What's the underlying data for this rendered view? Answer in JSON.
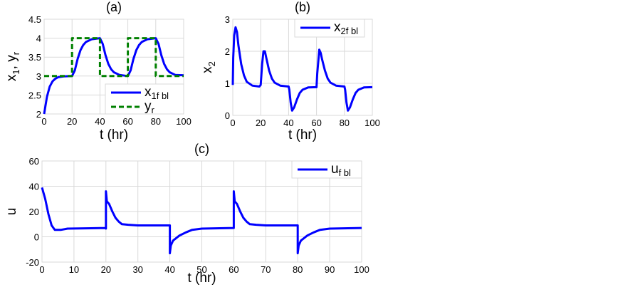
{
  "chart_data": [
    {
      "type": "line",
      "title": "(a)",
      "xlabel": "t (hr)",
      "ylabel": "x1, yr",
      "ylabel_main": "x",
      "ylabel_sub1": "1",
      "ylabel_sep": ", y",
      "ylabel_sub2": "r",
      "xlim": [
        0,
        100
      ],
      "ylim": [
        2,
        4.5
      ],
      "xticks": [
        0,
        20,
        40,
        60,
        80,
        100
      ],
      "yticks": [
        2,
        2.5,
        3,
        3.5,
        4,
        4.5
      ],
      "ytick_labels": [
        "2",
        "2.5",
        "3",
        "3.5",
        "4",
        "4.5"
      ],
      "grid": true,
      "legend_placement": "bottom-right",
      "series": [
        {
          "name": "x1f bl",
          "legend_main": "x",
          "legend_sub": "1f bl",
          "color": "#0000ff",
          "style": "solid",
          "points": [
            [
              0,
              2
            ],
            [
              2,
              2.45
            ],
            [
              4,
              2.72
            ],
            [
              6,
              2.86
            ],
            [
              8,
              2.93
            ],
            [
              10,
              2.97
            ],
            [
              14,
              2.99
            ],
            [
              20,
              3.0
            ],
            [
              22,
              3.15
            ],
            [
              24,
              3.45
            ],
            [
              26,
              3.68
            ],
            [
              28,
              3.82
            ],
            [
              30,
              3.9
            ],
            [
              34,
              3.97
            ],
            [
              40,
              4.0
            ],
            [
              42,
              3.85
            ],
            [
              44,
              3.55
            ],
            [
              46,
              3.32
            ],
            [
              48,
              3.18
            ],
            [
              50,
              3.1
            ],
            [
              54,
              3.03
            ],
            [
              60,
              3.0
            ],
            [
              62,
              3.15
            ],
            [
              64,
              3.45
            ],
            [
              66,
              3.68
            ],
            [
              68,
              3.82
            ],
            [
              70,
              3.9
            ],
            [
              74,
              3.97
            ],
            [
              80,
              4.0
            ],
            [
              82,
              3.85
            ],
            [
              84,
              3.55
            ],
            [
              86,
              3.32
            ],
            [
              88,
              3.18
            ],
            [
              90,
              3.1
            ],
            [
              94,
              3.03
            ],
            [
              100,
              3.02
            ]
          ]
        },
        {
          "name": "yr",
          "legend_main": "y",
          "legend_sub": "r",
          "color": "#008000",
          "style": "dashed",
          "points": [
            [
              0,
              3
            ],
            [
              20,
              3
            ],
            [
              20,
              4
            ],
            [
              40,
              4
            ],
            [
              40,
              3
            ],
            [
              60,
              3
            ],
            [
              60,
              4
            ],
            [
              80,
              4
            ],
            [
              80,
              3
            ],
            [
              100,
              3
            ]
          ]
        }
      ]
    },
    {
      "type": "line",
      "title": "(b)",
      "xlabel": "t (hr)",
      "ylabel": "x2",
      "ylabel_main": "x",
      "ylabel_sub1": "2",
      "xlim": [
        0,
        100
      ],
      "ylim": [
        0,
        3
      ],
      "xticks": [
        0,
        20,
        40,
        60,
        80,
        100
      ],
      "yticks": [
        0,
        1,
        2,
        3
      ],
      "ytick_labels": [
        "0",
        "1",
        "2",
        "3"
      ],
      "grid": true,
      "legend_placement": "top-right",
      "series": [
        {
          "name": "x2f bl",
          "legend_main": "x",
          "legend_sub": "2f bl",
          "color": "#0000ff",
          "style": "solid",
          "points": [
            [
              0,
              0.95
            ],
            [
              0.3,
              1.8
            ],
            [
              1,
              2.5
            ],
            [
              2,
              2.75
            ],
            [
              3,
              2.6
            ],
            [
              4,
              2.2
            ],
            [
              6,
              1.6
            ],
            [
              8,
              1.25
            ],
            [
              10,
              1.05
            ],
            [
              14,
              0.93
            ],
            [
              19,
              0.9
            ],
            [
              20,
              0.95
            ],
            [
              21,
              1.6
            ],
            [
              22,
              2.0
            ],
            [
              23,
              2.0
            ],
            [
              24,
              1.8
            ],
            [
              26,
              1.4
            ],
            [
              28,
              1.15
            ],
            [
              30,
              1.02
            ],
            [
              34,
              0.93
            ],
            [
              40,
              0.9
            ],
            [
              40.5,
              0.8
            ],
            [
              41.5,
              0.4
            ],
            [
              42.5,
              0.15
            ],
            [
              44,
              0.25
            ],
            [
              46,
              0.5
            ],
            [
              48,
              0.7
            ],
            [
              50,
              0.8
            ],
            [
              54,
              0.87
            ],
            [
              60,
              0.88
            ],
            [
              60.5,
              1.3
            ],
            [
              62,
              2.05
            ],
            [
              63,
              1.95
            ],
            [
              64,
              1.75
            ],
            [
              66,
              1.4
            ],
            [
              68,
              1.15
            ],
            [
              70,
              1.02
            ],
            [
              74,
              0.93
            ],
            [
              80,
              0.9
            ],
            [
              80.5,
              0.8
            ],
            [
              81.5,
              0.4
            ],
            [
              82.5,
              0.15
            ],
            [
              84,
              0.25
            ],
            [
              86,
              0.5
            ],
            [
              88,
              0.7
            ],
            [
              90,
              0.8
            ],
            [
              94,
              0.87
            ],
            [
              100,
              0.88
            ]
          ]
        }
      ]
    },
    {
      "type": "line",
      "title": "(c)",
      "xlabel": "t (hr)",
      "ylabel": "u",
      "ylabel_main": "u",
      "xlim": [
        0,
        100
      ],
      "ylim": [
        -20,
        60
      ],
      "xticks": [
        0,
        10,
        20,
        30,
        40,
        50,
        60,
        70,
        80,
        90,
        100
      ],
      "yticks": [
        -20,
        0,
        20,
        40,
        60
      ],
      "ytick_labels": [
        "-20",
        "0",
        "20",
        "40",
        "60"
      ],
      "grid": true,
      "legend_placement": "top-right",
      "series": [
        {
          "name": "uf bl",
          "legend_main": "u",
          "legend_sub": "f bl",
          "color": "#0000ff",
          "style": "solid",
          "points": [
            [
              0,
              39
            ],
            [
              1,
              30
            ],
            [
              2,
              18
            ],
            [
              3,
              9
            ],
            [
              4,
              5.5
            ],
            [
              6,
              5.5
            ],
            [
              8,
              6.5
            ],
            [
              19.8,
              7
            ],
            [
              20,
              6.5
            ],
            [
              20,
              36
            ],
            [
              20.3,
              28
            ],
            [
              21,
              26
            ],
            [
              22,
              20
            ],
            [
              23,
              15
            ],
            [
              24,
              12
            ],
            [
              25,
              10
            ],
            [
              27,
              9.5
            ],
            [
              30,
              9
            ],
            [
              40,
              9
            ],
            [
              40,
              -13
            ],
            [
              40.3,
              -7
            ],
            [
              41,
              -3
            ],
            [
              43,
              1
            ],
            [
              45,
              3.5
            ],
            [
              47,
              5.5
            ],
            [
              50,
              6.5
            ],
            [
              59.8,
              7
            ],
            [
              60,
              7
            ],
            [
              60,
              36
            ],
            [
              60.3,
              28
            ],
            [
              61,
              26
            ],
            [
              62,
              20
            ],
            [
              63,
              15
            ],
            [
              64,
              12
            ],
            [
              65,
              10
            ],
            [
              67,
              9.5
            ],
            [
              70,
              9
            ],
            [
              80,
              9
            ],
            [
              80,
              -13
            ],
            [
              80.3,
              -7
            ],
            [
              81,
              -3
            ],
            [
              83,
              1
            ],
            [
              85,
              3.5
            ],
            [
              87,
              5.5
            ],
            [
              90,
              6.5
            ],
            [
              100,
              7
            ]
          ]
        }
      ]
    }
  ]
}
